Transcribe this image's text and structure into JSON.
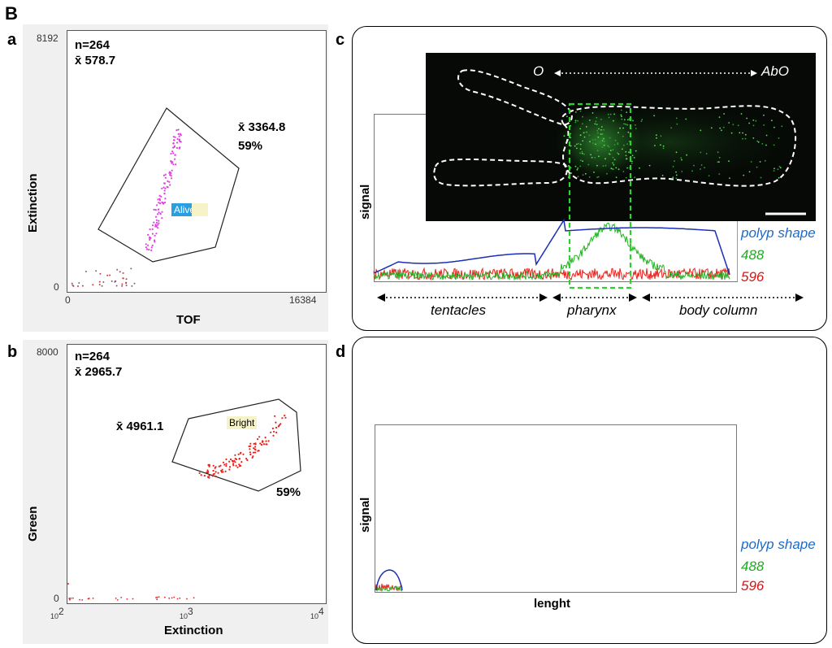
{
  "figure_label": "B",
  "panels": {
    "a": {
      "letter": "a",
      "y_max_tick": "8192",
      "y_min_tick": "0",
      "x_min_tick": "0",
      "x_max_tick": "16384",
      "n": "n=264",
      "mean_all": "x̄ 578.7",
      "mean_gate": "x̄ 3364.8",
      "pct_gate": "59%",
      "gate_label": "Alive",
      "ylabel": "Extinction",
      "xlabel": "TOF"
    },
    "b": {
      "letter": "b",
      "y_max_tick": "8000",
      "y_min_tick": "0",
      "x_tick_1_base": "10",
      "x_tick_1_exp": "2",
      "x_tick_2_base": "10",
      "x_tick_2_exp": "3",
      "x_tick_3_base": "10",
      "x_tick_3_exp": "4",
      "n": "n=264",
      "mean_all": "x̄ 2965.7",
      "mean_gate": "x̄ 4961.1",
      "pct_gate": "59%",
      "gate_label": "Bright",
      "ylabel": "Green",
      "xlabel": "Extinction"
    },
    "c": {
      "letter": "c",
      "ylabel": "signal",
      "label_O": "O",
      "label_AbO": "AbO",
      "legend_shape": "polyp shape",
      "legend_488": "488",
      "legend_596": "596",
      "seg_tentacles": "tentacles",
      "seg_pharynx": "pharynx",
      "seg_body": "body column"
    },
    "d": {
      "letter": "d",
      "ylabel": "signal",
      "xlabel": "lenght",
      "legend_shape": "polyp shape",
      "legend_488": "488",
      "legend_596": "596"
    }
  },
  "colors": {
    "shape": "#1a2fb5",
    "green": "#22b322",
    "red": "#e8201a",
    "magenta": "#e040e0",
    "legend_blue": "#1c6bc8",
    "legend_green": "#22aa22",
    "legend_red": "#e01010",
    "gate_bg_alive": "#2a9fe0",
    "gate_bg_bright": "#f7f3c8"
  }
}
